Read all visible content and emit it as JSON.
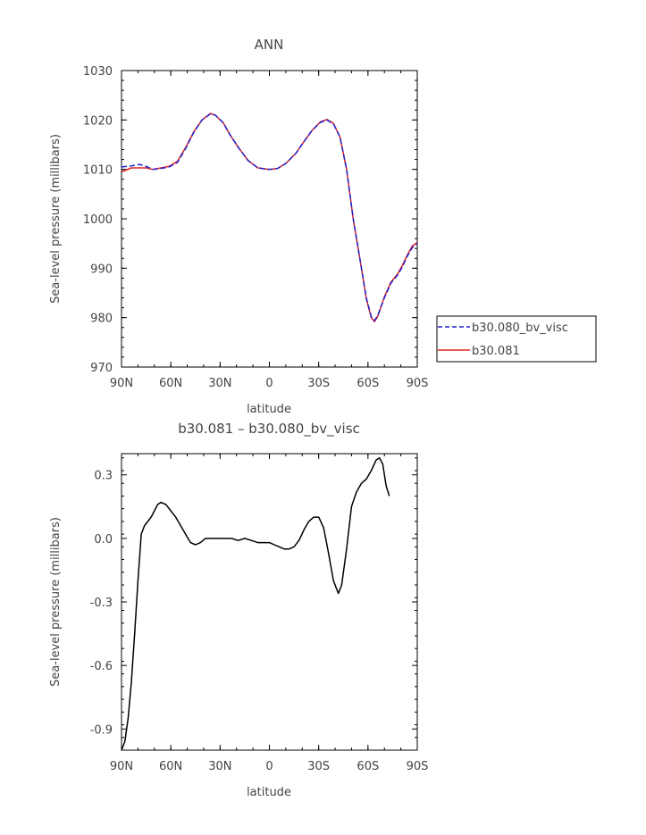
{
  "chart_data": [
    {
      "type": "line",
      "title": "ANN",
      "xlabel": "latitude",
      "ylabel": "Sea-level pressure (millibars)",
      "xticks": [
        "90N",
        "60N",
        "30N",
        "0",
        "30S",
        "60S",
        "90S"
      ],
      "xlim": [
        90,
        -90
      ],
      "ylim": [
        970,
        1030
      ],
      "yticks": [
        1030,
        1020,
        1010,
        1000,
        990,
        980,
        970
      ],
      "legend_position": "right",
      "series": [
        {
          "name": "b30.080_bv_visc",
          "color": "#2020d0",
          "style": "dashed",
          "points": [
            [
              90,
              1010.5
            ],
            [
              84,
              1010.7
            ],
            [
              79,
              1011.0
            ],
            [
              75,
              1010.6
            ],
            [
              71,
              1010.0
            ],
            [
              66,
              1010.2
            ],
            [
              61,
              1010.5
            ],
            [
              56,
              1011.4
            ],
            [
              51,
              1014.2
            ],
            [
              46,
              1017.5
            ],
            [
              41,
              1020.0
            ],
            [
              36,
              1021.2
            ],
            [
              33,
              1021.0
            ],
            [
              28,
              1019.4
            ],
            [
              24,
              1017.0
            ],
            [
              19,
              1014.5
            ],
            [
              13,
              1011.8
            ],
            [
              7,
              1010.3
            ],
            [
              0,
              1010.0
            ],
            [
              -5,
              1010.2
            ],
            [
              -10,
              1011.2
            ],
            [
              -16,
              1013.2
            ],
            [
              -21,
              1015.6
            ],
            [
              -26,
              1017.9
            ],
            [
              -31,
              1019.5
            ],
            [
              -35,
              1020.0
            ],
            [
              -39,
              1019.2
            ],
            [
              -43,
              1016.5
            ],
            [
              -47,
              1010.0
            ],
            [
              -51,
              1000.0
            ],
            [
              -56,
              990.0
            ],
            [
              -59,
              984.0
            ],
            [
              -62,
              980.2
            ],
            [
              -64,
              979.4
            ],
            [
              -66,
              980.5
            ],
            [
              -70,
              984.0
            ],
            [
              -74,
              987.0
            ],
            [
              -78,
              988.6
            ],
            [
              -81,
              990.3
            ],
            [
              -84,
              992.5
            ],
            [
              -87,
              994.2
            ],
            [
              -90,
              995.0
            ]
          ]
        },
        {
          "name": "b30.081",
          "color": "#e02020",
          "style": "solid",
          "points": [
            [
              90,
              1009.5
            ],
            [
              84,
              1010.3
            ],
            [
              79,
              1010.3
            ],
            [
              75,
              1010.3
            ],
            [
              71,
              1010.0
            ],
            [
              66,
              1010.3
            ],
            [
              61,
              1010.6
            ],
            [
              56,
              1011.6
            ],
            [
              51,
              1014.4
            ],
            [
              46,
              1017.6
            ],
            [
              41,
              1020.0
            ],
            [
              36,
              1021.3
            ],
            [
              33,
              1021.0
            ],
            [
              28,
              1019.4
            ],
            [
              24,
              1017.0
            ],
            [
              19,
              1014.5
            ],
            [
              13,
              1011.8
            ],
            [
              7,
              1010.3
            ],
            [
              0,
              1010.0
            ],
            [
              -5,
              1010.2
            ],
            [
              -10,
              1011.2
            ],
            [
              -16,
              1013.2
            ],
            [
              -21,
              1015.6
            ],
            [
              -26,
              1017.9
            ],
            [
              -31,
              1019.6
            ],
            [
              -35,
              1020.1
            ],
            [
              -39,
              1019.3
            ],
            [
              -43,
              1016.5
            ],
            [
              -47,
              1010.0
            ],
            [
              -51,
              1000.0
            ],
            [
              -56,
              990.0
            ],
            [
              -59,
              983.8
            ],
            [
              -62,
              980.0
            ],
            [
              -64,
              979.2
            ],
            [
              -66,
              980.3
            ],
            [
              -70,
              984.2
            ],
            [
              -74,
              987.2
            ],
            [
              -78,
              988.8
            ],
            [
              -81,
              990.6
            ],
            [
              -84,
              992.7
            ],
            [
              -87,
              994.5
            ],
            [
              -90,
              995.2
            ]
          ]
        }
      ]
    },
    {
      "type": "line",
      "title": "b30.081 – b30.080_bv_visc",
      "xlabel": "latitude",
      "ylabel": "Sea-level pressure (millibars)",
      "xticks": [
        "90N",
        "60N",
        "30N",
        "0",
        "30S",
        "60S",
        "90S"
      ],
      "xlim": [
        90,
        -90
      ],
      "ylim": [
        -1.0,
        0.4
      ],
      "yticks": [
        "0.3",
        "0.0",
        "-0.3",
        "-0.6",
        "-0.9"
      ],
      "series": [
        {
          "name": "",
          "color": "#000000",
          "style": "solid",
          "points": [
            [
              90,
              -1.0
            ],
            [
              88,
              -0.96
            ],
            [
              86,
              -0.85
            ],
            [
              84,
              -0.68
            ],
            [
              82,
              -0.45
            ],
            [
              80,
              -0.2
            ],
            [
              78,
              0.02
            ],
            [
              76,
              0.06
            ],
            [
              74,
              0.08
            ],
            [
              72,
              0.1
            ],
            [
              70,
              0.13
            ],
            [
              68,
              0.16
            ],
            [
              66,
              0.17
            ],
            [
              63,
              0.16
            ],
            [
              60,
              0.13
            ],
            [
              57,
              0.1
            ],
            [
              54,
              0.06
            ],
            [
              51,
              0.02
            ],
            [
              48,
              -0.02
            ],
            [
              45,
              -0.03
            ],
            [
              42,
              -0.02
            ],
            [
              39,
              0.0
            ],
            [
              35,
              0.0
            ],
            [
              31,
              0.0
            ],
            [
              27,
              0.0
            ],
            [
              23,
              0.0
            ],
            [
              19,
              -0.01
            ],
            [
              15,
              0.0
            ],
            [
              11,
              -0.01
            ],
            [
              7,
              -0.02
            ],
            [
              3,
              -0.02
            ],
            [
              0,
              -0.02
            ],
            [
              -3,
              -0.03
            ],
            [
              -6,
              -0.04
            ],
            [
              -9,
              -0.05
            ],
            [
              -12,
              -0.05
            ],
            [
              -15,
              -0.04
            ],
            [
              -18,
              -0.01
            ],
            [
              -21,
              0.04
            ],
            [
              -24,
              0.08
            ],
            [
              -27,
              0.1
            ],
            [
              -30,
              0.1
            ],
            [
              -33,
              0.05
            ],
            [
              -36,
              -0.07
            ],
            [
              -39,
              -0.2
            ],
            [
              -42,
              -0.26
            ],
            [
              -44,
              -0.22
            ],
            [
              -47,
              -0.05
            ],
            [
              -50,
              0.15
            ],
            [
              -53,
              0.22
            ],
            [
              -56,
              0.26
            ],
            [
              -59,
              0.28
            ],
            [
              -62,
              0.32
            ],
            [
              -65,
              0.37
            ],
            [
              -67,
              0.38
            ],
            [
              -69,
              0.35
            ],
            [
              -71,
              0.25
            ],
            [
              -73,
              0.2
            ]
          ]
        }
      ]
    }
  ]
}
